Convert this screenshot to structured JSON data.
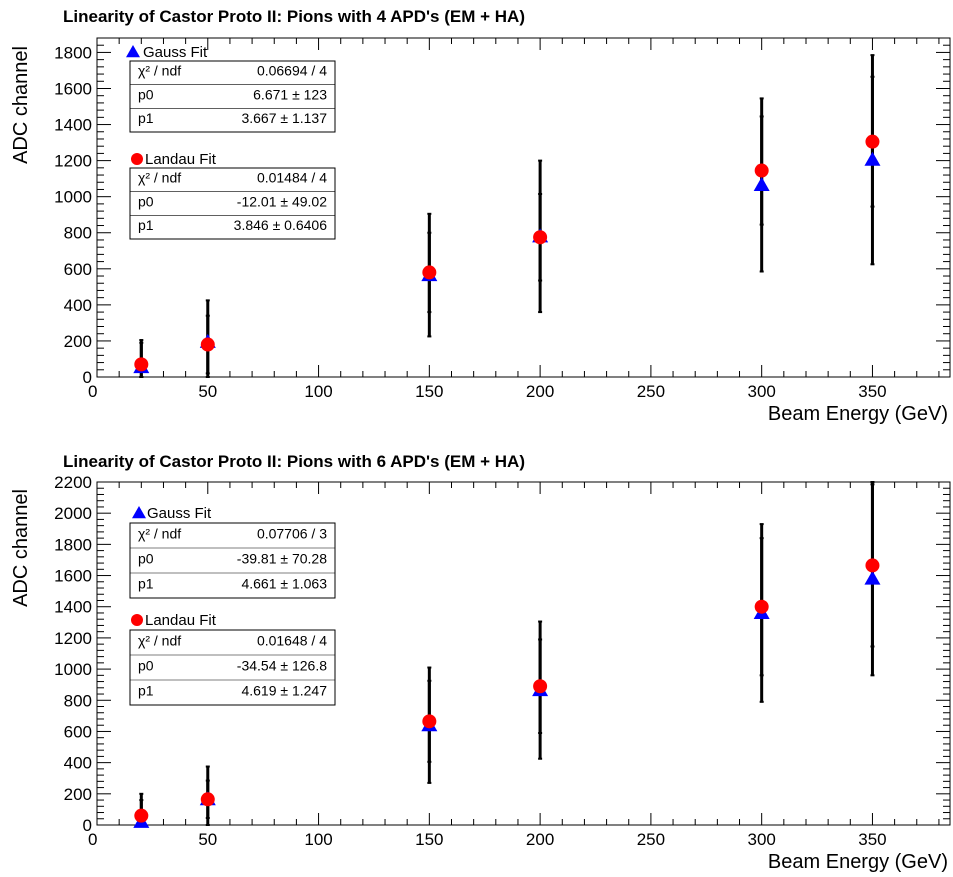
{
  "chart_data": [
    {
      "type": "scatter",
      "title": "Linearity of Castor Proto II: Pions with 4 APD's (EM + HA)",
      "xlabel": "Beam Energy (GeV)",
      "ylabel": "ADC channel",
      "xlim": [
        0,
        385
      ],
      "ylim": [
        0,
        1880
      ],
      "x_ticks": [
        0,
        50,
        100,
        150,
        200,
        250,
        300,
        350
      ],
      "y_ticks": [
        0,
        200,
        400,
        600,
        800,
        1000,
        1200,
        1400,
        1600,
        1800
      ],
      "grid": false,
      "series": [
        {
          "name": "Gauss Fit",
          "marker": "triangle",
          "color": "#0000ff",
          "points": [
            {
              "x": 20,
              "y": 55,
              "err": 150
            },
            {
              "x": 50,
              "y": 195,
              "err": 230
            },
            {
              "x": 150,
              "y": 565,
              "err": 340
            },
            {
              "x": 200,
              "y": 780,
              "err": 420
            },
            {
              "x": 300,
              "y": 1065,
              "err": 480
            },
            {
              "x": 350,
              "y": 1205,
              "err": 580
            }
          ],
          "fit": {
            "chi2_label": "χ² / ndf",
            "chi2_value": "0.06694 / 4",
            "p0_label": "p0",
            "p0_value": "6.671 ±  123",
            "p1_label": "p1",
            "p1_value": "3.667 ± 1.137"
          }
        },
        {
          "name": "Landau Fit",
          "marker": "circle",
          "color": "#ff0000",
          "points": [
            {
              "x": 20,
              "y": 70,
              "err": 120
            },
            {
              "x": 50,
              "y": 180,
              "err": 160
            },
            {
              "x": 150,
              "y": 580,
              "err": 220
            },
            {
              "x": 200,
              "y": 775,
              "err": 240
            },
            {
              "x": 300,
              "y": 1145,
              "err": 300
            },
            {
              "x": 350,
              "y": 1305,
              "err": 360
            }
          ],
          "fit": {
            "chi2_label": "χ² / ndf",
            "chi2_value": "0.01484 / 4",
            "p0_label": "p0",
            "p0_value": "-12.01 ± 49.02",
            "p1_label": "p1",
            "p1_value": "3.846 ± 0.6406"
          }
        }
      ]
    },
    {
      "type": "scatter",
      "title": "Linearity of Castor Proto II: Pions with 6 APD's (EM + HA)",
      "xlabel": "Beam Energy (GeV)",
      "ylabel": "ADC channel",
      "xlim": [
        0,
        385
      ],
      "ylim": [
        0,
        2200
      ],
      "x_ticks": [
        0,
        50,
        100,
        150,
        200,
        250,
        300,
        350
      ],
      "y_ticks": [
        0,
        200,
        400,
        600,
        800,
        1000,
        1200,
        1400,
        1600,
        1800,
        2000,
        2200
      ],
      "grid": false,
      "series": [
        {
          "name": "Gauss Fit",
          "marker": "triangle",
          "color": "#0000ff",
          "points": [
            {
              "x": 20,
              "y": 20,
              "err": 180
            },
            {
              "x": 50,
              "y": 165,
              "err": 210
            },
            {
              "x": 150,
              "y": 640,
              "err": 370
            },
            {
              "x": 200,
              "y": 865,
              "err": 440
            },
            {
              "x": 300,
              "y": 1360,
              "err": 570
            },
            {
              "x": 350,
              "y": 1580,
              "err": 620
            }
          ],
          "fit": {
            "chi2_label": "χ² / ndf",
            "chi2_value": "0.07706 / 3",
            "p0_label": "p0",
            "p0_value": "-39.81 ± 70.28",
            "p1_label": "p1",
            "p1_value": "4.661 ± 1.063"
          }
        },
        {
          "name": "Landau Fit",
          "marker": "circle",
          "color": "#ff0000",
          "points": [
            {
              "x": 20,
              "y": 60,
              "err": 100
            },
            {
              "x": 50,
              "y": 165,
              "err": 120
            },
            {
              "x": 150,
              "y": 665,
              "err": 260
            },
            {
              "x": 200,
              "y": 890,
              "err": 300
            },
            {
              "x": 300,
              "y": 1400,
              "err": 440
            },
            {
              "x": 350,
              "y": 1665,
              "err": 520
            }
          ],
          "fit": {
            "chi2_label": "χ² / ndf",
            "chi2_value": "0.01648 / 4",
            "p0_label": "p0",
            "p0_value": "-34.54 ± 126.8",
            "p1_label": "p1",
            "p1_value": "4.619 ± 1.247"
          }
        }
      ]
    }
  ]
}
